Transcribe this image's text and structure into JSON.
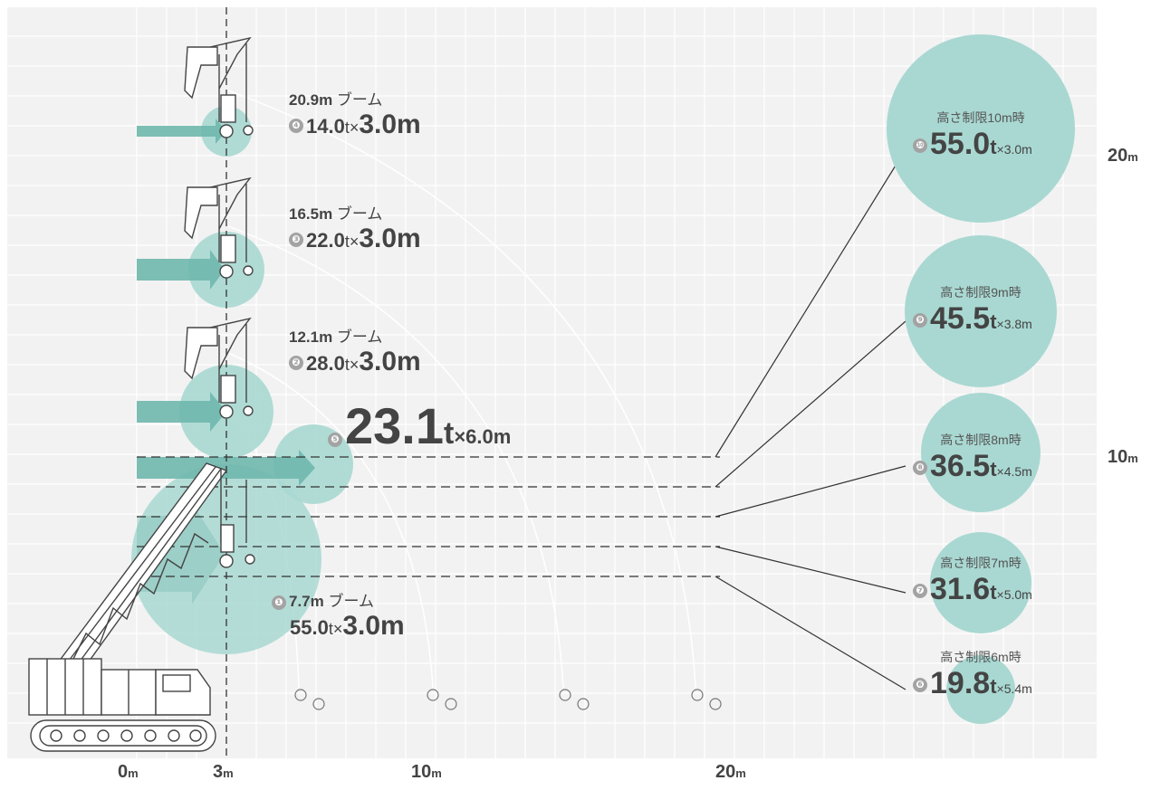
{
  "axis": {
    "x_labels": [
      {
        "value": "0",
        "unit": "m"
      },
      {
        "value": "3",
        "unit": "m"
      },
      {
        "value": "10",
        "unit": "m"
      },
      {
        "value": "20",
        "unit": "m"
      }
    ],
    "y_labels": [
      {
        "value": "20",
        "unit": "m"
      },
      {
        "value": "10",
        "unit": "m"
      }
    ]
  },
  "booms": [
    {
      "num": "❹",
      "boom": "20.9m",
      "boom_suffix": " ブーム",
      "load": "14.0",
      "t": "t×",
      "radius": "3.0m"
    },
    {
      "num": "❸",
      "boom": "16.5m",
      "boom_suffix": " ブーム",
      "load": "22.0",
      "t": "t×",
      "radius": "3.0m"
    },
    {
      "num": "❷",
      "boom": "12.1m",
      "boom_suffix": " ブーム",
      "load": "28.0",
      "t": "t×",
      "radius": "3.0m"
    },
    {
      "num": "❶",
      "boom": "7.7m",
      "boom_suffix": " ブーム",
      "load": "55.0",
      "t": "t×",
      "radius": "3.0m"
    }
  ],
  "max_radius": {
    "num": "❺",
    "load": "23.1",
    "t": "t",
    "radius": "×6.0m"
  },
  "height_limits": [
    {
      "num": "❿",
      "title": "高さ制限10m時",
      "load": "55.0",
      "t": "t",
      "radius": "×3.0m"
    },
    {
      "num": "❾",
      "title": "高さ制限9m時",
      "load": "45.5",
      "t": "t",
      "radius": "×3.8m"
    },
    {
      "num": "❽",
      "title": "高さ制限8m時",
      "load": "36.5",
      "t": "t",
      "radius": "×4.5m"
    },
    {
      "num": "❼",
      "title": "高さ制限7m時",
      "load": "31.6",
      "t": "t",
      "radius": "×5.0m"
    },
    {
      "num": "❻",
      "title": "高さ制限6m時",
      "load": "19.8",
      "t": "t",
      "radius": "×5.4m"
    }
  ],
  "colors": {
    "panel": "#f2f2f2",
    "grid": "#ffffff",
    "bubble": "#a9d8d2",
    "arrow": "#6fb7ad",
    "text": "#444444",
    "badge": "#a3a3a3",
    "line": "#333333"
  }
}
